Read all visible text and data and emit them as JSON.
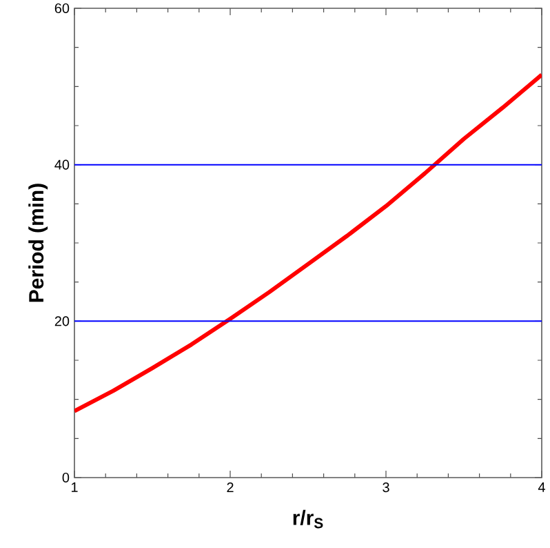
{
  "chart_data": {
    "type": "line",
    "xlabel": "r/r$_{S}$",
    "ylabel": "Period (min)",
    "x": [
      1,
      1.25,
      1.5,
      1.75,
      2,
      2.25,
      2.5,
      2.75,
      3,
      3.25,
      3.5,
      3.75,
      4
    ],
    "series": [
      {
        "color": "#ff0000",
        "values": [
          8.5,
          11.1,
          14,
          17,
          20.3,
          23.7,
          27.3,
          30.9,
          34.7,
          38.9,
          43.3,
          47.3,
          51.5
        ]
      }
    ],
    "xlim": [
      1,
      4
    ],
    "ylim": [
      0,
      60
    ],
    "xticks": [
      1,
      2,
      3,
      4
    ],
    "yticks": [
      0,
      20,
      40,
      60
    ],
    "ref_lines": [
      {
        "axis": "y",
        "value": 20,
        "color": "#0000ff"
      },
      {
        "axis": "y",
        "value": 40,
        "color": "#0000ff"
      }
    ],
    "grid": false,
    "marker": "none",
    "line_style": "solid"
  }
}
